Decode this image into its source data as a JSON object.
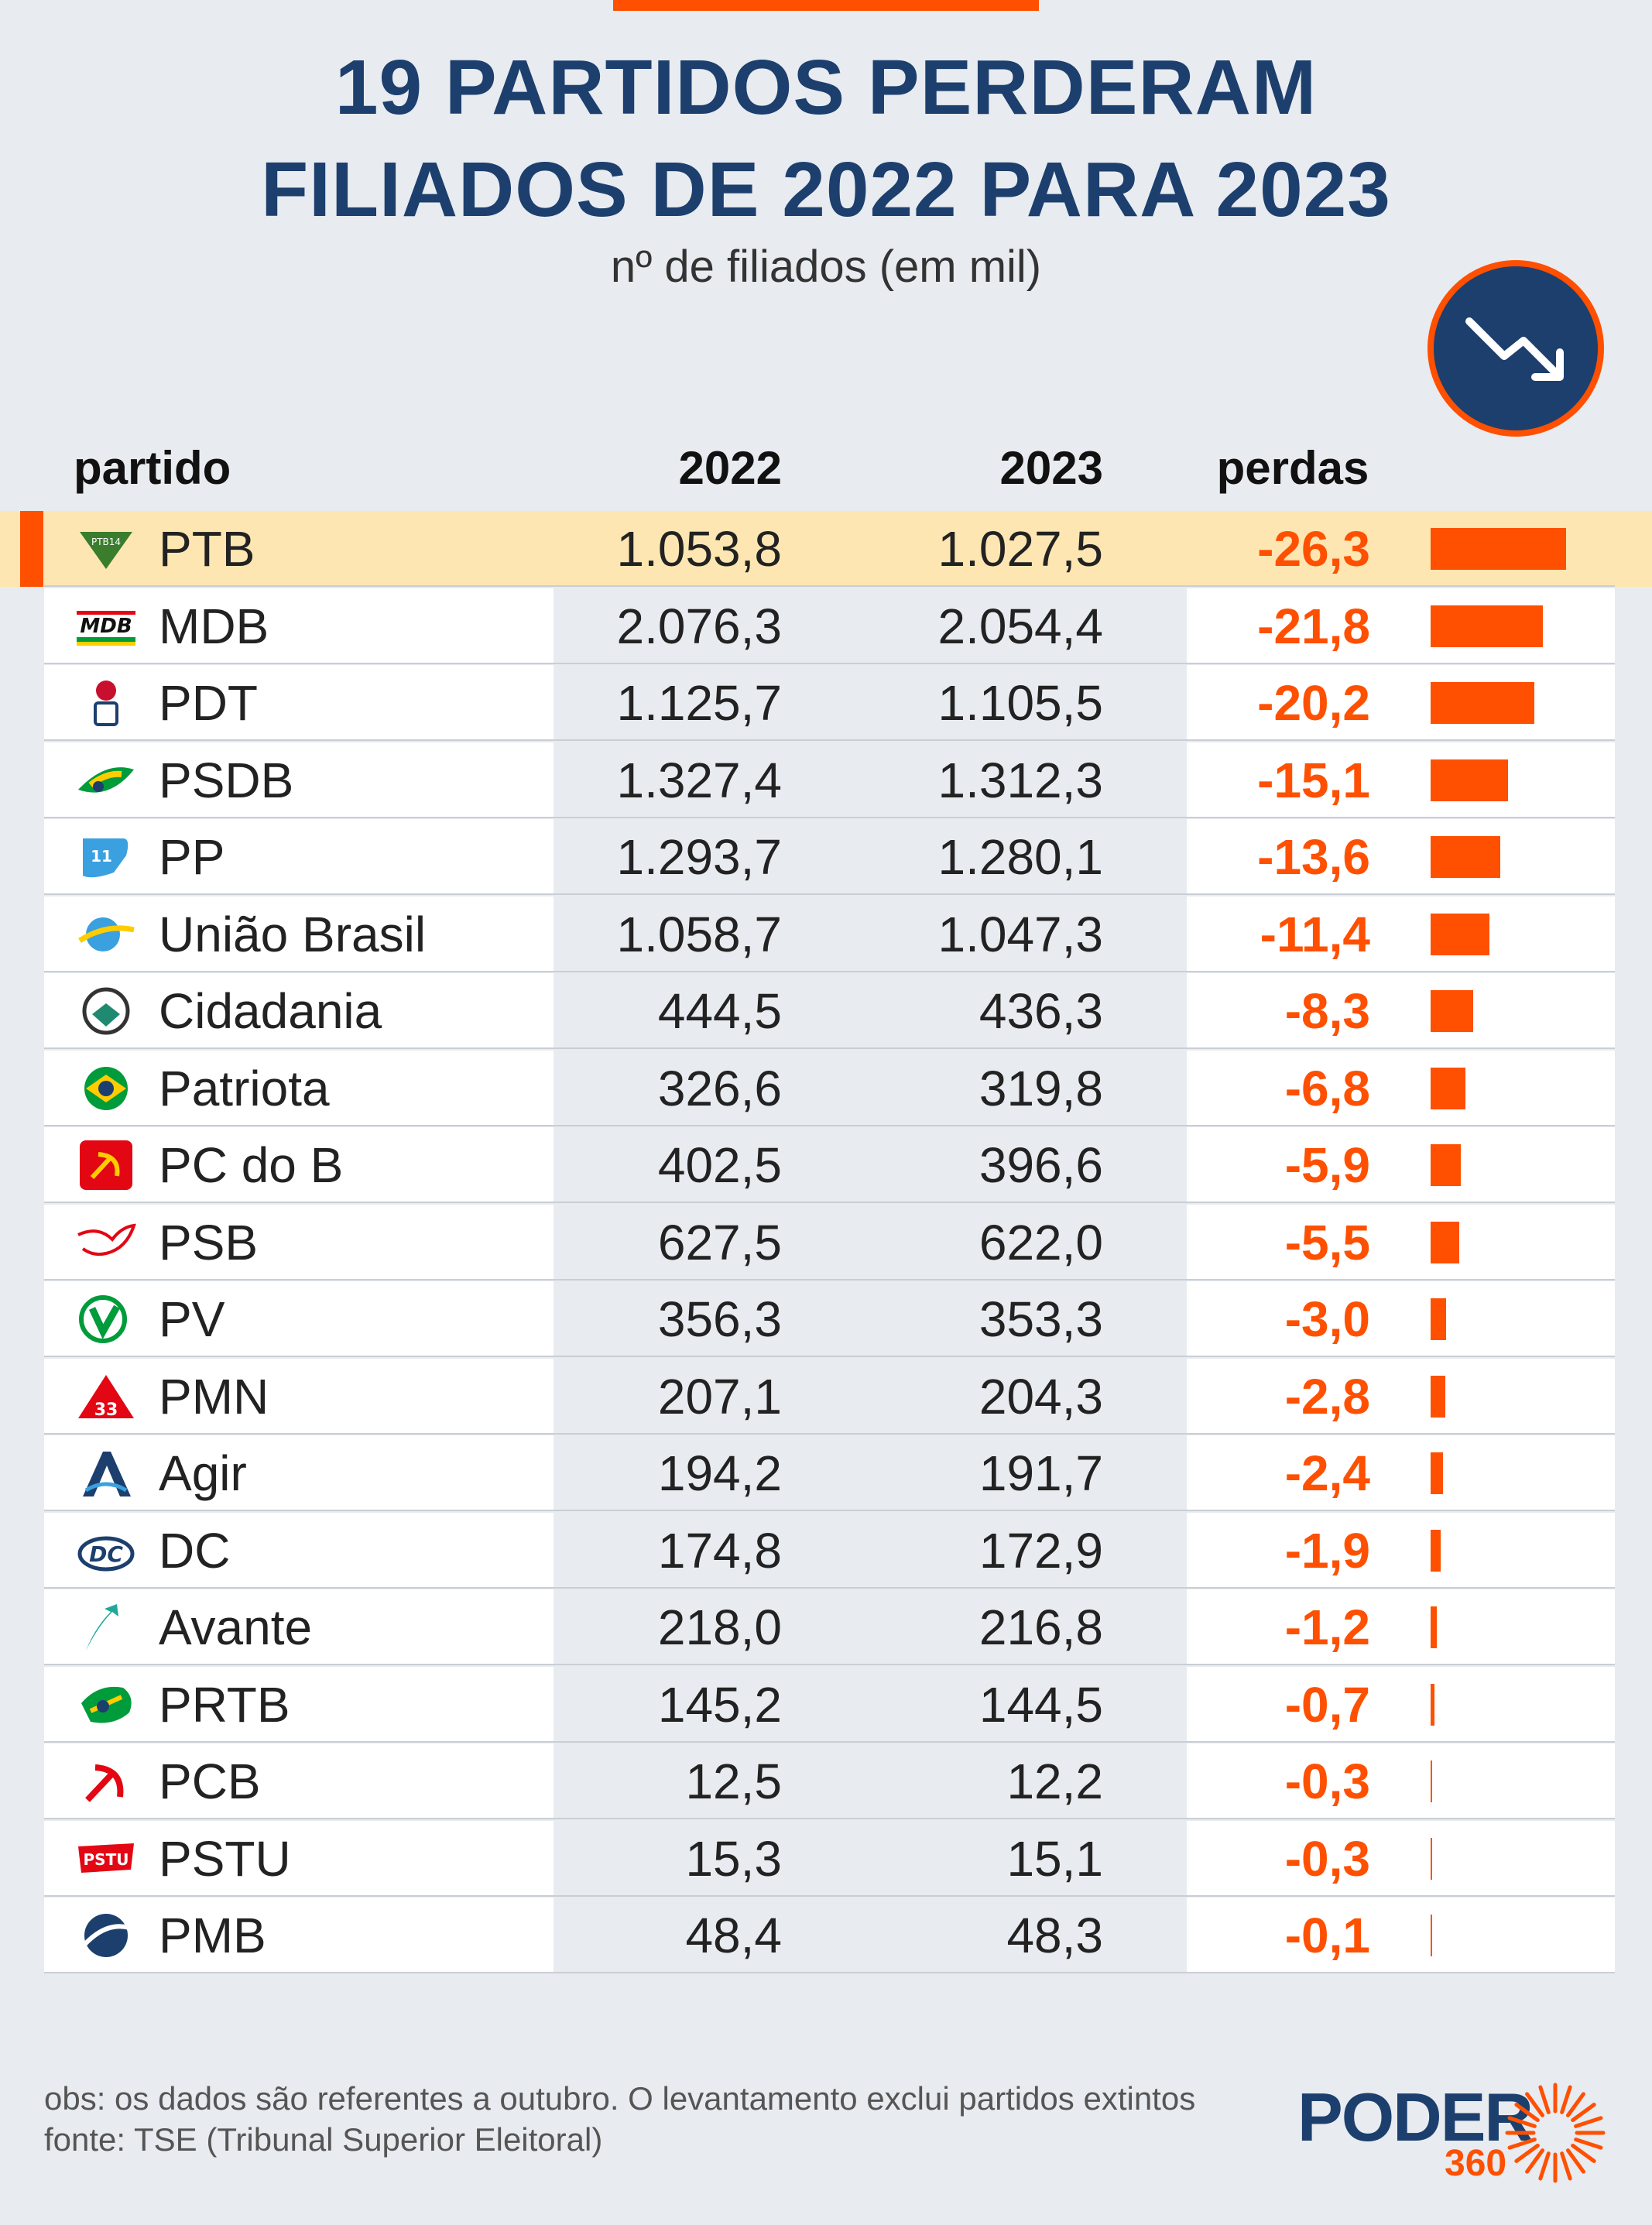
{
  "title_line1": "19 PARTIDOS PERDERAM",
  "title_line2": "FILIADOS DE 2022 PARA 2023",
  "subtitle": "nº de filiados (em mil)",
  "headers": {
    "party": "partido",
    "y2022": "2022",
    "y2023": "2023",
    "losses": "perdas"
  },
  "colors": {
    "accent": "#fe5000",
    "title": "#1c3f6e",
    "highlight": "#fde6b1",
    "background": "#e8ebef"
  },
  "icons": {
    "trend": "trend-down-arrow-icon"
  },
  "chart_data": {
    "type": "table",
    "columns": [
      "partido",
      "2022",
      "2023",
      "perdas"
    ],
    "rows": [
      {
        "party": "PTB",
        "v2022": "1.053,8",
        "v2023": "1.027,5",
        "loss": "-26,3",
        "loss_value": 26.3,
        "logo": "ptb-logo-icon",
        "highlight": true
      },
      {
        "party": "MDB",
        "v2022": "2.076,3",
        "v2023": "2.054,4",
        "loss": "-21,8",
        "loss_value": 21.8,
        "logo": "mdb-logo-icon"
      },
      {
        "party": "PDT",
        "v2022": "1.125,7",
        "v2023": "1.105,5",
        "loss": "-20,2",
        "loss_value": 20.2,
        "logo": "pdt-logo-icon"
      },
      {
        "party": "PSDB",
        "v2022": "1.327,4",
        "v2023": "1.312,3",
        "loss": "-15,1",
        "loss_value": 15.1,
        "logo": "psdb-logo-icon"
      },
      {
        "party": "PP",
        "v2022": "1.293,7",
        "v2023": "1.280,1",
        "loss": "-13,6",
        "loss_value": 13.6,
        "logo": "pp-logo-icon"
      },
      {
        "party": "União Brasil",
        "v2022": "1.058,7",
        "v2023": "1.047,3",
        "loss": "-11,4",
        "loss_value": 11.4,
        "logo": "uniao-brasil-logo-icon"
      },
      {
        "party": "Cidadania",
        "v2022": "444,5",
        "v2023": "436,3",
        "loss": "-8,3",
        "loss_value": 8.3,
        "logo": "cidadania-logo-icon"
      },
      {
        "party": "Patriota",
        "v2022": "326,6",
        "v2023": "319,8",
        "loss": "-6,8",
        "loss_value": 6.8,
        "logo": "patriota-logo-icon"
      },
      {
        "party": "PC do B",
        "v2022": "402,5",
        "v2023": "396,6",
        "loss": "-5,9",
        "loss_value": 5.9,
        "logo": "pcdob-logo-icon"
      },
      {
        "party": "PSB",
        "v2022": "627,5",
        "v2023": "622,0",
        "loss": "-5,5",
        "loss_value": 5.5,
        "logo": "psb-logo-icon"
      },
      {
        "party": "PV",
        "v2022": "356,3",
        "v2023": "353,3",
        "loss": "-3,0",
        "loss_value": 3.0,
        "logo": "pv-logo-icon"
      },
      {
        "party": "PMN",
        "v2022": "207,1",
        "v2023": "204,3",
        "loss": "-2,8",
        "loss_value": 2.8,
        "logo": "pmn-logo-icon"
      },
      {
        "party": "Agir",
        "v2022": "194,2",
        "v2023": "191,7",
        "loss": "-2,4",
        "loss_value": 2.4,
        "logo": "agir-logo-icon"
      },
      {
        "party": "DC",
        "v2022": "174,8",
        "v2023": "172,9",
        "loss": "-1,9",
        "loss_value": 1.9,
        "logo": "dc-logo-icon"
      },
      {
        "party": "Avante",
        "v2022": "218,0",
        "v2023": "216,8",
        "loss": "-1,2",
        "loss_value": 1.2,
        "logo": "avante-logo-icon"
      },
      {
        "party": "PRTB",
        "v2022": "145,2",
        "v2023": "144,5",
        "loss": "-0,7",
        "loss_value": 0.7,
        "logo": "prtb-logo-icon"
      },
      {
        "party": "PCB",
        "v2022": "12,5",
        "v2023": "12,2",
        "loss": "-0,3",
        "loss_value": 0.3,
        "logo": "pcb-logo-icon"
      },
      {
        "party": "PSTU",
        "v2022": "15,3",
        "v2023": "15,1",
        "loss": "-0,3",
        "loss_value": 0.3,
        "logo": "pstu-logo-icon"
      },
      {
        "party": "PMB",
        "v2022": "48,4",
        "v2023": "48,3",
        "loss": "-0,1",
        "loss_value": 0.1,
        "logo": "pmb-logo-icon"
      }
    ]
  },
  "footer": {
    "note": "obs: os dados são referentes a outubro. O levantamento exclui partidos extintos",
    "source": "fonte: TSE (Tribunal Superior Eleitoral)",
    "brand": "PODER",
    "brand_number": "360"
  }
}
